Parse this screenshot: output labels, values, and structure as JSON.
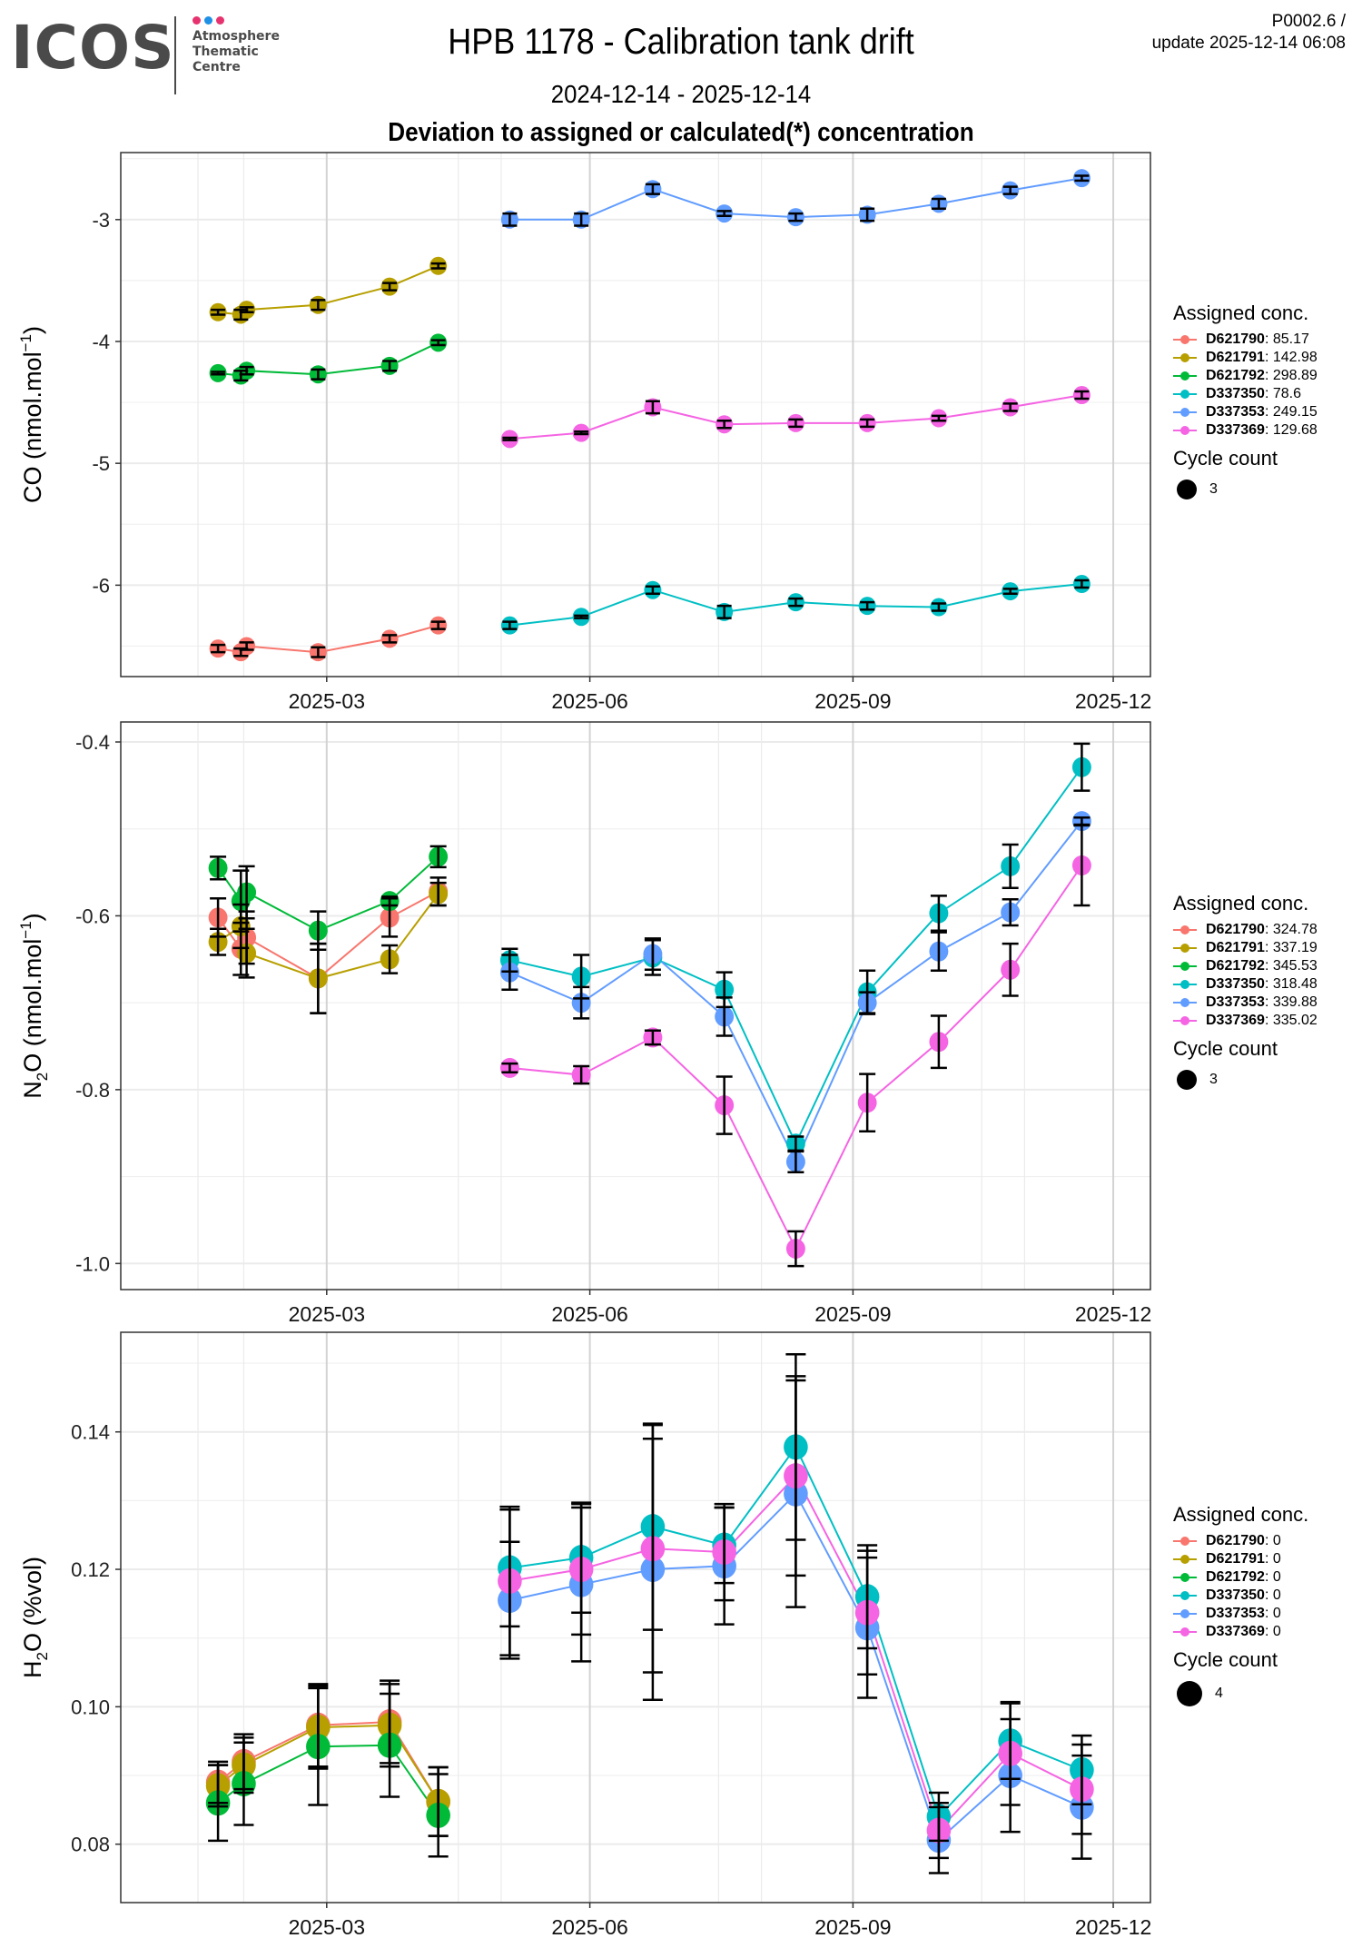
{
  "logo": {
    "text": "ICOS",
    "subtitle_lines": [
      "Atmosphere",
      "Thematic",
      "Centre"
    ],
    "dot_colors": [
      "#e6336f",
      "#1e90e6",
      "#e6336f"
    ]
  },
  "header": {
    "title": "HPB 1178 - Calibration tank drift",
    "date_range": "2024-12-14 - 2025-12-14",
    "heading": "Deviation to assigned or calculated(*) concentration",
    "version": "P0002.6 /",
    "update": "update  2025-12-14 06:08"
  },
  "tanks": [
    {
      "id": "D621790",
      "color": "#F8766D"
    },
    {
      "id": "D621791",
      "color": "#B79F00"
    },
    {
      "id": "D621792",
      "color": "#00BA38"
    },
    {
      "id": "D337350",
      "color": "#00BFC4"
    },
    {
      "id": "D337353",
      "color": "#619CFF"
    },
    {
      "id": "D337369",
      "color": "#F564E3"
    }
  ],
  "chart_data": [
    {
      "type": "line",
      "id": "co",
      "ylabel": "CO (nmol.mol-1)",
      "ylabel_main": "CO (nmol.mol",
      "ylabel_sup": "-1",
      "ylabel_end": ")",
      "ylim": [
        -6.75,
        -2.45
      ],
      "yticks": [
        -3,
        -4,
        -5,
        -6
      ],
      "ytick_labels": [
        "-3",
        "-4",
        "-5",
        "-6"
      ],
      "xlim": [
        "2024-12-19",
        "2025-12-14"
      ],
      "xticks": [
        "2025-03-01",
        "2025-06-01",
        "2025-09-01",
        "2025-12-01"
      ],
      "xtick_labels": [
        "2025-03",
        "2025-06",
        "2025-09",
        "2025-12"
      ],
      "grid": true,
      "legend_position": "right",
      "legend": {
        "title": "Assigned conc.",
        "values": [
          "85.17",
          "142.98",
          "298.89",
          "78.6",
          "249.15",
          "129.68"
        ],
        "cycle_title": "Cycle count",
        "cycle_value": "3"
      },
      "series": [
        {
          "name": "D621790",
          "x": [
            "2025-01-22",
            "2025-01-30",
            "2025-02-01",
            "2025-02-26",
            "2025-03-23",
            "2025-04-09"
          ],
          "y": [
            -6.52,
            -6.55,
            -6.5,
            -6.55,
            -6.44,
            -6.33
          ],
          "err": [
            0.03,
            0.03,
            0.03,
            0.04,
            0.03,
            0.03
          ]
        },
        {
          "name": "D621791",
          "x": [
            "2025-01-22",
            "2025-01-30",
            "2025-02-01",
            "2025-02-26",
            "2025-03-23",
            "2025-04-09"
          ],
          "y": [
            -3.76,
            -3.78,
            -3.74,
            -3.7,
            -3.55,
            -3.38
          ],
          "err": [
            0.02,
            0.04,
            0.02,
            0.04,
            0.03,
            0.02
          ]
        },
        {
          "name": "D621792",
          "x": [
            "2025-01-22",
            "2025-01-30",
            "2025-02-01",
            "2025-02-26",
            "2025-03-23",
            "2025-04-09"
          ],
          "y": [
            -4.26,
            -4.28,
            -4.24,
            -4.27,
            -4.2,
            -4.01
          ],
          "err": [
            0.01,
            0.04,
            0.03,
            0.04,
            0.04,
            0.02
          ]
        },
        {
          "name": "D337350",
          "x": [
            "2025-05-04",
            "2025-05-29",
            "2025-06-23",
            "2025-07-18",
            "2025-08-12",
            "2025-09-06",
            "2025-10-01",
            "2025-10-26",
            "2025-11-20"
          ],
          "y": [
            -6.33,
            -6.26,
            -6.04,
            -6.22,
            -6.14,
            -6.17,
            -6.18,
            -6.05,
            -5.99
          ],
          "err": [
            0.03,
            0.01,
            0.03,
            0.05,
            0.03,
            0.03,
            0.03,
            0.02,
            0.03
          ]
        },
        {
          "name": "D337353",
          "x": [
            "2025-05-04",
            "2025-05-29",
            "2025-06-23",
            "2025-07-18",
            "2025-08-12",
            "2025-09-06",
            "2025-10-01",
            "2025-10-26",
            "2025-11-20"
          ],
          "y": [
            -3.0,
            -3.0,
            -2.75,
            -2.95,
            -2.98,
            -2.96,
            -2.87,
            -2.76,
            -2.66
          ],
          "err": [
            0.05,
            0.05,
            0.04,
            0.02,
            0.03,
            0.05,
            0.04,
            0.03,
            0.02
          ]
        },
        {
          "name": "D337369",
          "x": [
            "2025-05-04",
            "2025-05-29",
            "2025-06-23",
            "2025-07-18",
            "2025-08-12",
            "2025-09-06",
            "2025-10-01",
            "2025-10-26",
            "2025-11-20"
          ],
          "y": [
            -4.8,
            -4.75,
            -4.54,
            -4.68,
            -4.67,
            -4.67,
            -4.63,
            -4.54,
            -4.44
          ],
          "err": [
            0.01,
            0.01,
            0.05,
            0.03,
            0.03,
            0.03,
            0.02,
            0.03,
            0.03
          ]
        }
      ]
    },
    {
      "type": "line",
      "id": "n2o",
      "ylabel": "N2O (nmol.mol-1)",
      "ylabel_main": "N",
      "ylabel_sub": "2",
      "ylabel_rest": "O (nmol.mol",
      "ylabel_sup": "-1",
      "ylabel_end": ")",
      "ylim": [
        -1.03,
        -0.377
      ],
      "yticks": [
        -0.4,
        -0.6,
        -0.8,
        -1.0
      ],
      "ytick_labels": [
        "-0.4",
        "-0.6",
        "-0.8",
        "-1.0"
      ],
      "xlim": [
        "2024-12-19",
        "2025-12-14"
      ],
      "xticks": [
        "2025-03-01",
        "2025-06-01",
        "2025-09-01",
        "2025-12-01"
      ],
      "xtick_labels": [
        "2025-03",
        "2025-06",
        "2025-09",
        "2025-12"
      ],
      "grid": true,
      "legend_position": "right",
      "legend": {
        "title": "Assigned conc.",
        "values": [
          "324.78",
          "337.19",
          "345.53",
          "318.48",
          "339.88",
          "335.02"
        ],
        "cycle_title": "Cycle count",
        "cycle_value": "3"
      },
      "series": [
        {
          "name": "D621790",
          "x": [
            "2025-01-22",
            "2025-01-30",
            "2025-02-01",
            "2025-02-26",
            "2025-03-23",
            "2025-04-09"
          ],
          "y": [
            -0.602,
            -0.638,
            -0.625,
            -0.672,
            -0.602,
            -0.572
          ],
          "err": [
            0.022,
            0.03,
            0.03,
            0.04,
            0.022,
            0.016
          ]
        },
        {
          "name": "D621791",
          "x": [
            "2025-01-22",
            "2025-01-30",
            "2025-02-01",
            "2025-02-26",
            "2025-03-23",
            "2025-04-09"
          ],
          "y": [
            -0.63,
            -0.612,
            -0.643,
            -0.672,
            -0.65,
            -0.575
          ],
          "err": [
            0.015,
            0.025,
            0.028,
            0.04,
            0.016,
            0.013
          ]
        },
        {
          "name": "D621792",
          "x": [
            "2025-01-22",
            "2025-01-30",
            "2025-02-01",
            "2025-02-26",
            "2025-03-23",
            "2025-04-09"
          ],
          "y": [
            -0.545,
            -0.583,
            -0.573,
            -0.617,
            -0.583,
            -0.532
          ],
          "err": [
            0.013,
            0.035,
            0.03,
            0.022,
            0.005,
            0.012
          ]
        },
        {
          "name": "D337350",
          "x": [
            "2025-05-04",
            "2025-05-29",
            "2025-06-23",
            "2025-07-18",
            "2025-08-12",
            "2025-09-06",
            "2025-10-01",
            "2025-10-26",
            "2025-11-20"
          ],
          "y": [
            -0.651,
            -0.67,
            -0.648,
            -0.685,
            -0.862,
            -0.688,
            -0.597,
            -0.543,
            -0.429
          ],
          "err": [
            0.013,
            0.025,
            0.02,
            0.02,
            0.008,
            0.025,
            0.02,
            0.025,
            0.027
          ]
        },
        {
          "name": "D337353",
          "x": [
            "2025-05-04",
            "2025-05-29",
            "2025-06-23",
            "2025-07-18",
            "2025-08-12",
            "2025-09-06",
            "2025-10-01",
            "2025-10-26",
            "2025-11-20"
          ],
          "y": [
            -0.665,
            -0.7,
            -0.644,
            -0.716,
            -0.883,
            -0.7,
            -0.641,
            -0.596,
            -0.491
          ],
          "err": [
            0.02,
            0.018,
            0.018,
            0.022,
            0.012,
            0.012,
            0.022,
            0.015,
            0.004
          ]
        },
        {
          "name": "D337369",
          "x": [
            "2025-05-04",
            "2025-05-29",
            "2025-06-23",
            "2025-07-18",
            "2025-08-12",
            "2025-09-06",
            "2025-10-01",
            "2025-10-26",
            "2025-11-20"
          ],
          "y": [
            -0.775,
            -0.783,
            -0.74,
            -0.818,
            -0.983,
            -0.815,
            -0.745,
            -0.662,
            -0.542
          ],
          "err": [
            0.005,
            0.01,
            0.008,
            0.033,
            0.02,
            0.033,
            0.03,
            0.03,
            0.046
          ]
        }
      ]
    },
    {
      "type": "line",
      "id": "h2o",
      "ylabel": "H2O (%vol)",
      "ylabel_main": "H",
      "ylabel_sub": "2",
      "ylabel_rest": "O (%vol)",
      "ylim": [
        0.0715,
        0.1545
      ],
      "yticks": [
        0.14,
        0.12,
        0.1,
        0.08
      ],
      "ytick_labels": [
        "0.14",
        "0.12",
        "0.10",
        "0.08"
      ],
      "xlim": [
        "2024-12-19",
        "2025-12-14"
      ],
      "xticks": [
        "2025-03-01",
        "2025-06-01",
        "2025-09-01",
        "2025-12-01"
      ],
      "xtick_labels": [
        "2025-03",
        "2025-06",
        "2025-09",
        "2025-12"
      ],
      "grid": true,
      "legend_position": "right",
      "legend": {
        "title": "Assigned conc.",
        "values": [
          "0",
          "0",
          "0",
          "0",
          "0",
          "0"
        ],
        "cycle_title": "Cycle count",
        "cycle_value": "4"
      },
      "series": [
        {
          "name": "D621790",
          "x": [
            "2025-01-22",
            "2025-01-31",
            "2025-02-26",
            "2025-03-23",
            "2025-04-09"
          ],
          "y": [
            0.089,
            0.092,
            0.0973,
            0.0978,
            0.0862
          ],
          "err": [
            0.003,
            0.004,
            0.006,
            0.006,
            0.005
          ]
        },
        {
          "name": "D621791",
          "x": [
            "2025-01-22",
            "2025-01-31",
            "2025-02-26",
            "2025-03-23",
            "2025-04-09"
          ],
          "y": [
            0.0885,
            0.0915,
            0.097,
            0.0973,
            0.0862
          ],
          "err": [
            0.003,
            0.004,
            0.006,
            0.006,
            0.005
          ]
        },
        {
          "name": "D621792",
          "x": [
            "2025-01-22",
            "2025-01-31",
            "2025-02-26",
            "2025-03-23",
            "2025-04-09"
          ],
          "y": [
            0.086,
            0.0888,
            0.0942,
            0.0944,
            0.0842
          ],
          "err": [
            0.0055,
            0.006,
            0.0085,
            0.0075,
            0.006
          ]
        },
        {
          "name": "D337350",
          "x": [
            "2025-05-04",
            "2025-05-29",
            "2025-06-23",
            "2025-07-18",
            "2025-08-12",
            "2025-09-06",
            "2025-10-01",
            "2025-10-26",
            "2025-11-20"
          ],
          "y": [
            0.1202,
            0.1217,
            0.1262,
            0.1235,
            0.1378,
            0.116,
            0.084,
            0.095,
            0.0908
          ],
          "err": [
            0.0085,
            0.008,
            0.015,
            0.0055,
            0.0135,
            0.0075,
            0.0035,
            0.0055,
            0.005
          ]
        },
        {
          "name": "D337353",
          "x": [
            "2025-05-04",
            "2025-05-29",
            "2025-06-23",
            "2025-07-18",
            "2025-08-12",
            "2025-09-06",
            "2025-10-01",
            "2025-10-26",
            "2025-11-20"
          ],
          "y": [
            0.1155,
            0.1178,
            0.12,
            0.1205,
            0.131,
            0.1115,
            0.0806,
            0.09,
            0.0854
          ],
          "err": [
            0.0085,
            0.0112,
            0.019,
            0.0085,
            0.0165,
            0.0102,
            0.0048,
            0.0082,
            0.0075
          ]
        },
        {
          "name": "D337369",
          "x": [
            "2025-05-04",
            "2025-05-29",
            "2025-06-23",
            "2025-07-18",
            "2025-08-12",
            "2025-09-06",
            "2025-10-01",
            "2025-10-26",
            "2025-11-20"
          ],
          "y": [
            0.1183,
            0.12,
            0.123,
            0.1225,
            0.1336,
            0.1137,
            0.082,
            0.0932,
            0.088
          ],
          "err": [
            0.0108,
            0.0095,
            0.018,
            0.007,
            0.0145,
            0.009,
            0.004,
            0.0075,
            0.0065
          ]
        }
      ]
    }
  ]
}
